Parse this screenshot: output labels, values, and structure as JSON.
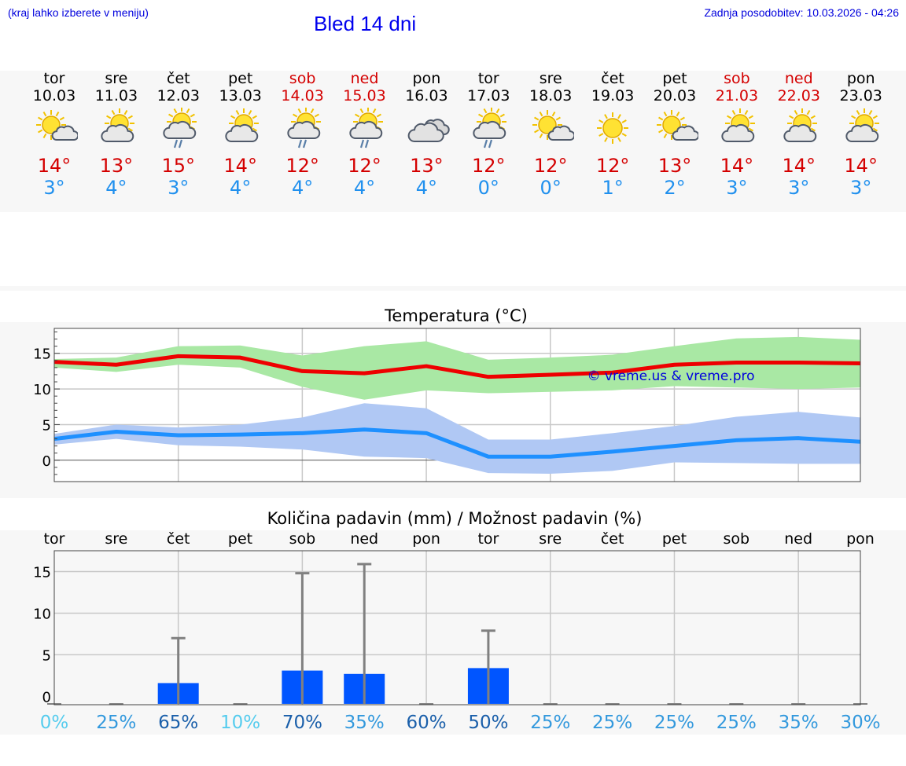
{
  "header": {
    "hint": "(kraj lahko izberete v meniju)",
    "title": "Bled 14 dni",
    "updated": "Zadnja posodobitev: 10.03.2026 - 04:26"
  },
  "days": [
    {
      "name": "tor",
      "date": "10.03",
      "weekend": false,
      "icon": "sun-cloud-small-icon",
      "max": "14°",
      "min": "3°"
    },
    {
      "name": "sre",
      "date": "11.03",
      "weekend": false,
      "icon": "sun-cloud-icon",
      "max": "13°",
      "min": "4°"
    },
    {
      "name": "čet",
      "date": "12.03",
      "weekend": false,
      "icon": "sun-cloud-rain-icon",
      "max": "15°",
      "min": "3°"
    },
    {
      "name": "pet",
      "date": "13.03",
      "weekend": false,
      "icon": "sun-cloud-icon",
      "max": "14°",
      "min": "4°"
    },
    {
      "name": "sob",
      "date": "14.03",
      "weekend": true,
      "icon": "sun-cloud-rain-icon",
      "max": "12°",
      "min": "4°"
    },
    {
      "name": "ned",
      "date": "15.03",
      "weekend": true,
      "icon": "sun-cloud-rain-icon",
      "max": "12°",
      "min": "4°"
    },
    {
      "name": "pon",
      "date": "16.03",
      "weekend": false,
      "icon": "cloudy-icon",
      "max": "13°",
      "min": "4°"
    },
    {
      "name": "tor",
      "date": "17.03",
      "weekend": false,
      "icon": "sun-cloud-rain-icon",
      "max": "12°",
      "min": "0°"
    },
    {
      "name": "sre",
      "date": "18.03",
      "weekend": false,
      "icon": "sun-cloud-small-icon",
      "max": "12°",
      "min": "0°"
    },
    {
      "name": "čet",
      "date": "19.03",
      "weekend": false,
      "icon": "sun-icon",
      "max": "12°",
      "min": "1°"
    },
    {
      "name": "pet",
      "date": "20.03",
      "weekend": false,
      "icon": "sun-cloud-small-icon",
      "max": "13°",
      "min": "2°"
    },
    {
      "name": "sob",
      "date": "21.03",
      "weekend": true,
      "icon": "sun-cloud-icon",
      "max": "14°",
      "min": "3°"
    },
    {
      "name": "ned",
      "date": "22.03",
      "weekend": true,
      "icon": "sun-cloud-icon",
      "max": "14°",
      "min": "3°"
    },
    {
      "name": "pon",
      "date": "23.03",
      "weekend": false,
      "icon": "sun-cloud-icon",
      "max": "14°",
      "min": "3°"
    }
  ],
  "colors": {
    "max_line": "#ee0000",
    "max_band": "#a9e8a4",
    "min_line": "#1e90ff",
    "min_band": "#b0c8f4",
    "precip_bar": "#0055ff",
    "precip_err": "#808080",
    "pct_low": "#55ccee",
    "pct_mid": "#3399dd",
    "pct_high": "#1a5faa"
  },
  "chart_data": [
    {
      "type": "line",
      "title": "Temperatura (°C)",
      "watermark": "© vreme.us & vreme.pro",
      "ylim": [
        -3,
        18.5
      ],
      "yticks": [
        0,
        5,
        10,
        15
      ],
      "grid": true,
      "x": [
        0,
        1,
        2,
        3,
        4,
        5,
        6,
        7,
        8,
        9,
        10,
        11,
        12,
        13
      ],
      "series": [
        {
          "name": "max",
          "values": [
            13.8,
            13.4,
            14.6,
            14.4,
            12.5,
            12.2,
            13.2,
            11.7,
            12.0,
            12.3,
            13.4,
            13.7,
            13.7,
            13.6
          ],
          "band_low": [
            13.0,
            12.4,
            13.4,
            13.0,
            10.3,
            8.5,
            9.8,
            9.4,
            9.6,
            9.8,
            10.4,
            10.2,
            10.0,
            10.2
          ],
          "band_high": [
            14.2,
            14.4,
            16.0,
            16.1,
            14.7,
            16.0,
            16.7,
            14.1,
            14.4,
            14.8,
            16.0,
            17.1,
            17.3,
            16.9
          ]
        },
        {
          "name": "min",
          "values": [
            3.0,
            4.0,
            3.5,
            3.6,
            3.8,
            4.3,
            3.8,
            0.5,
            0.5,
            1.2,
            2.0,
            2.8,
            3.1,
            2.6
          ],
          "band_low": [
            2.2,
            3.0,
            2.1,
            1.9,
            1.5,
            0.5,
            0.3,
            -1.8,
            -1.9,
            -1.5,
            -0.3,
            -0.4,
            -0.5,
            -0.5
          ],
          "band_high": [
            3.7,
            5.0,
            4.6,
            5.0,
            6.0,
            8.0,
            7.3,
            2.9,
            2.9,
            3.8,
            4.8,
            6.1,
            6.8,
            6.0
          ]
        }
      ]
    },
    {
      "type": "bar",
      "title": "Količina padavin (mm) / Možnost padavin (%)",
      "ylim": [
        -1,
        17.5
      ],
      "yticks": [
        0,
        5,
        10,
        15
      ],
      "grid": true,
      "categories": [
        "tor",
        "sre",
        "čet",
        "pet",
        "sob",
        "ned",
        "pon",
        "tor",
        "sre",
        "čet",
        "pet",
        "sob",
        "ned",
        "pon"
      ],
      "values": [
        0,
        0,
        1.6,
        0,
        3.1,
        2.7,
        0,
        3.4,
        0,
        0,
        0,
        0,
        0,
        0
      ],
      "error_high": [
        0,
        0,
        7.0,
        0,
        14.8,
        15.9,
        0,
        7.9,
        0,
        0,
        0,
        0,
        0,
        0
      ],
      "probability": [
        "0%",
        "25%",
        "65%",
        "10%",
        "70%",
        "35%",
        "60%",
        "50%",
        "25%",
        "25%",
        "25%",
        "25%",
        "35%",
        "30%"
      ]
    }
  ]
}
